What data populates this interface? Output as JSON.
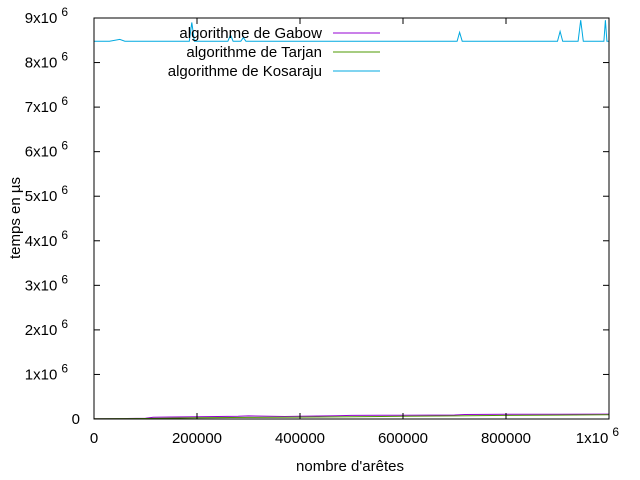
{
  "chart_data": {
    "type": "line",
    "xlabel": "nombre d'arêtes",
    "ylabel": "temps en µs",
    "xlim": [
      0,
      1000000
    ],
    "ylim": [
      0,
      9000000
    ],
    "x_ticks": [
      {
        "value": 0,
        "label": "0"
      },
      {
        "value": 200000,
        "label": "200000"
      },
      {
        "value": 400000,
        "label": "400000"
      },
      {
        "value": 600000,
        "label": "600000"
      },
      {
        "value": 800000,
        "label": "800000"
      },
      {
        "value": 1000000,
        "label": "1x10",
        "exp": "6"
      }
    ],
    "y_ticks": [
      {
        "value": 0,
        "label": "0"
      },
      {
        "value": 1000000,
        "label": "1x10",
        "exp": "6"
      },
      {
        "value": 2000000,
        "label": "2x10",
        "exp": "6"
      },
      {
        "value": 3000000,
        "label": "3x10",
        "exp": "6"
      },
      {
        "value": 4000000,
        "label": "4x10",
        "exp": "6"
      },
      {
        "value": 5000000,
        "label": "5x10",
        "exp": "6"
      },
      {
        "value": 6000000,
        "label": "6x10",
        "exp": "6"
      },
      {
        "value": 7000000,
        "label": "7x10",
        "exp": "6"
      },
      {
        "value": 8000000,
        "label": "8x10",
        "exp": "6"
      },
      {
        "value": 9000000,
        "label": "9x10",
        "exp": "6"
      }
    ],
    "grid": false,
    "legend_position": "top",
    "series": [
      {
        "name": "algorithme de Gabow",
        "color": "#9400d3",
        "x": [
          0,
          50000,
          100000,
          115000,
          150000,
          200000,
          280000,
          300000,
          370000,
          400000,
          470000,
          500000,
          600000,
          700000,
          720000,
          800000,
          900000,
          1000000
        ],
        "y": [
          5000,
          10000,
          15000,
          40000,
          45000,
          50000,
          60000,
          70000,
          55000,
          60000,
          75000,
          80000,
          85000,
          90000,
          100000,
          105000,
          108000,
          110000
        ]
      },
      {
        "name": "algorithme de Tarjan",
        "color": "#4d9a00",
        "x": [
          0,
          50000,
          100000,
          150000,
          200000,
          300000,
          400000,
          500000,
          600000,
          700000,
          800000,
          900000,
          1000000
        ],
        "y": [
          4000,
          8000,
          12000,
          20000,
          28000,
          35000,
          42000,
          52000,
          60000,
          70000,
          80000,
          88000,
          95000
        ]
      },
      {
        "name": "algorithme de Kosaraju",
        "color": "#00a9e0",
        "x": [
          0,
          30000,
          50000,
          60000,
          150000,
          185000,
          190000,
          195000,
          260000,
          265000,
          270000,
          285000,
          290000,
          295000,
          400000,
          500000,
          705000,
          710000,
          715000,
          880000,
          900000,
          905000,
          910000,
          940000,
          945000,
          950000,
          990000,
          993000,
          996000,
          1000000
        ],
        "y": [
          8480000,
          8480000,
          8520000,
          8480000,
          8480000,
          8480000,
          8900000,
          8480000,
          8480000,
          8620000,
          8480000,
          8480000,
          8560000,
          8480000,
          8480000,
          8480000,
          8480000,
          8680000,
          8480000,
          8480000,
          8480000,
          8700000,
          8480000,
          8480000,
          8950000,
          8480000,
          8480000,
          8950000,
          8480000,
          8480000
        ]
      }
    ]
  }
}
